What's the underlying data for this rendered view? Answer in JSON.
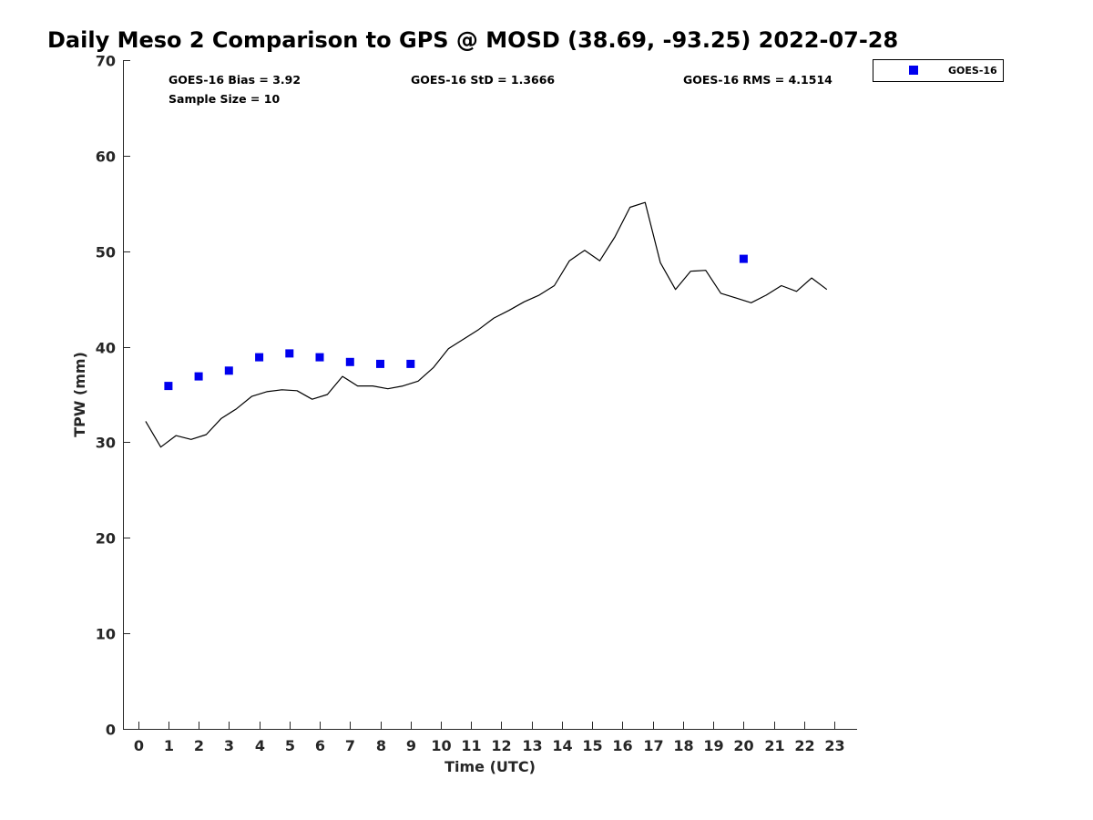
{
  "chart_data": {
    "type": "scatter",
    "title": "Daily Meso 2 Comparison to GPS @ MOSD (38.69, -93.25) 2022-07-28",
    "xlabel": "Time (UTC)",
    "ylabel": "TPW (mm)",
    "xlim": [
      -0.5,
      23.75
    ],
    "ylim": [
      0,
      70
    ],
    "x_ticks": [
      "0",
      "1",
      "2",
      "3",
      "4",
      "5",
      "6",
      "7",
      "8",
      "9",
      "10",
      "11",
      "12",
      "13",
      "14",
      "15",
      "16",
      "17",
      "18",
      "19",
      "20",
      "21",
      "22",
      "23"
    ],
    "y_ticks": [
      "0",
      "10",
      "20",
      "30",
      "40",
      "50",
      "60",
      "70"
    ],
    "grid": false,
    "legend_position": "outside top-right",
    "stats": {
      "bias": "GOES-16 Bias = 3.92",
      "std": "GOES-16 StD = 1.3666",
      "rms": "GOES-16 RMS = 4.1514",
      "sample": "Sample Size = 10"
    },
    "series": [
      {
        "name": "GOES-16",
        "kind": "scatter",
        "color": "#0000ee",
        "marker": "square",
        "x": [
          1,
          2,
          3,
          4,
          5,
          6,
          7,
          8,
          9,
          20
        ],
        "y": [
          35.9,
          36.9,
          37.5,
          38.9,
          39.3,
          38.9,
          38.4,
          38.2,
          38.2,
          49.2
        ]
      },
      {
        "kind": "line",
        "color": "#000000",
        "x": [
          0.25,
          0.75,
          1.25,
          1.75,
          2.25,
          2.75,
          3.25,
          3.75,
          4.25,
          4.75,
          5.25,
          5.75,
          6.25,
          6.75,
          7.25,
          7.75,
          8.25,
          8.75,
          9.25,
          9.75,
          10.25,
          10.75,
          11.25,
          11.75,
          12.25,
          12.75,
          13.25,
          13.75,
          14.25,
          14.75,
          15.25,
          15.75,
          16.25,
          16.75,
          17.25,
          17.75,
          18.25,
          18.75,
          19.25,
          19.75,
          20.25,
          20.75,
          21.25,
          21.75,
          22.25,
          22.75
        ],
        "y": [
          32.2,
          29.5,
          30.7,
          30.3,
          30.8,
          32.5,
          33.5,
          34.8,
          35.3,
          35.5,
          35.4,
          34.5,
          35.0,
          36.9,
          35.9,
          35.9,
          35.6,
          35.9,
          36.4,
          37.8,
          39.8,
          40.8,
          41.8,
          43.0,
          43.8,
          44.7,
          45.4,
          46.4,
          49.0,
          50.1,
          49.0,
          51.5,
          54.6,
          55.1,
          48.8,
          46.0,
          47.9,
          48.0,
          45.6,
          45.1,
          44.6,
          45.4,
          46.4,
          45.8,
          47.2,
          46.0
        ]
      }
    ]
  }
}
